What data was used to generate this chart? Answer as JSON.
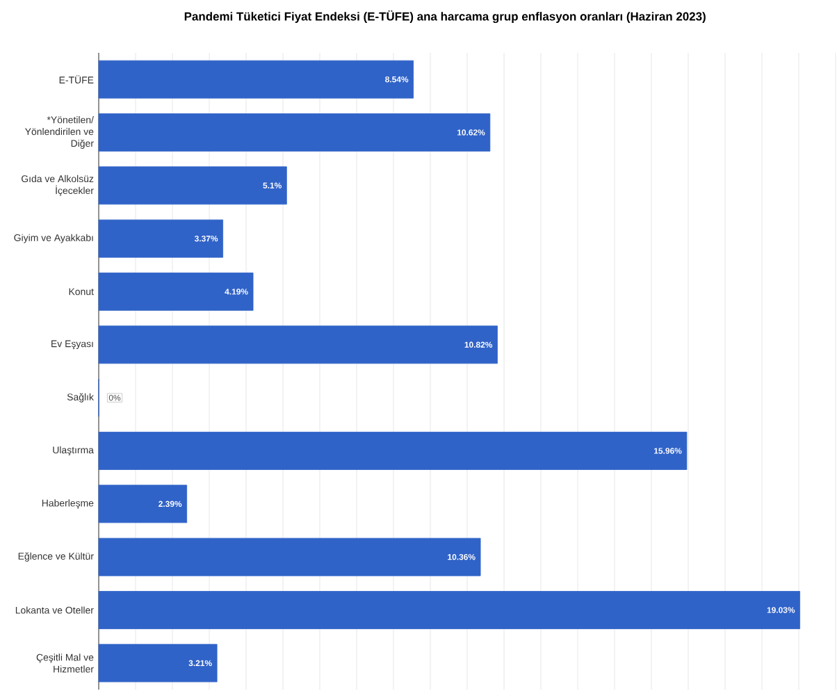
{
  "chart_data": {
    "type": "bar",
    "orientation": "horizontal",
    "title": "Pandemi Tüketici Fiyat Endeksi (E-TÜFE) ana harcama grup enflasyon oranları (Haziran 2023)",
    "categories": [
      "E-TÜFE",
      "*Yönetilen/ Yönlendirilen ve Diğer",
      "Gıda ve Alkolsüz İçecekler",
      "Giyim ve Ayakkabı",
      "Konut",
      "Ev Eşyası",
      "Sağlık",
      "Ulaştırma",
      "Haberleşme",
      "Eğlence ve Kültür",
      "Lokanta ve Oteller",
      "Çeşitli Mal ve Hizmetler"
    ],
    "values": [
      8.54,
      10.62,
      5.1,
      3.37,
      4.19,
      10.82,
      0,
      15.96,
      2.39,
      10.36,
      19.03,
      3.21
    ],
    "value_labels": [
      "8.54%",
      "10.62%",
      "5.1%",
      "3.37%",
      "4.19%",
      "10.82%",
      "0%",
      "15.96%",
      "2.39%",
      "10.36%",
      "19.03%",
      "3.21%"
    ],
    "color": "#3063c8",
    "xlim": [
      0,
      20
    ],
    "xticks": [
      {
        "value": 0,
        "label": null
      },
      {
        "value": 1,
        "label": null
      },
      {
        "value": 2,
        "label": null
      },
      {
        "value": 3,
        "label": null
      },
      {
        "value": 4,
        "label": null
      },
      {
        "value": 5,
        "label": null
      },
      {
        "value": 6,
        "label": null
      },
      {
        "value": 7,
        "label": null
      },
      {
        "value": 8,
        "label": null
      },
      {
        "value": 9,
        "label": null
      },
      {
        "value": 10,
        "label": null
      },
      {
        "value": 11,
        "label": null
      },
      {
        "value": 12,
        "label": null
      },
      {
        "value": 13,
        "label": null
      },
      {
        "value": 14,
        "label": null
      },
      {
        "value": 15,
        "label": null
      },
      {
        "value": 16,
        "label": null
      },
      {
        "value": 17,
        "label": null
      },
      {
        "value": 18,
        "label": null
      },
      {
        "value": 19,
        "label": null
      },
      {
        "value": 20,
        "label": null
      }
    ],
    "grid": "x"
  }
}
